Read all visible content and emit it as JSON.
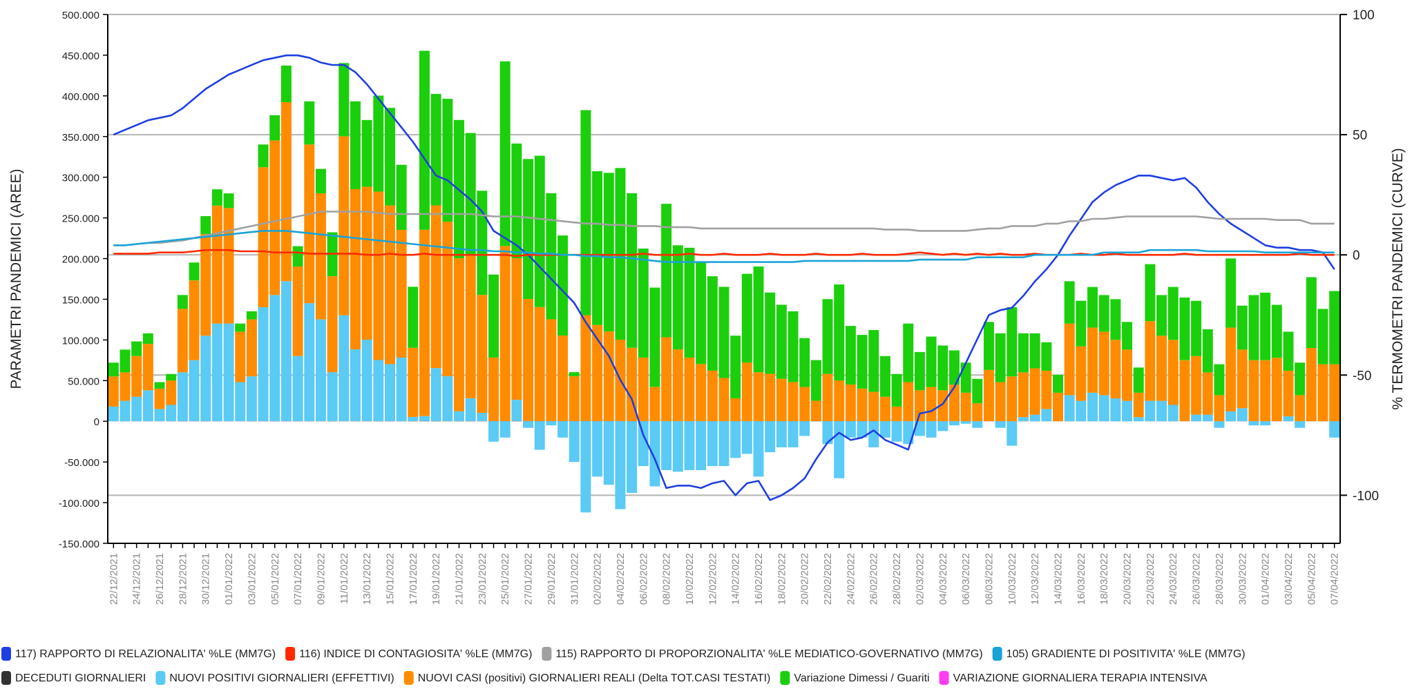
{
  "chart_data": {
    "type": "bar",
    "stacked": true,
    "ylabel": "PARAMETRI PANDEMICI (AREE)",
    "y2label": "% TERMOMETRI PANDEMICI (CURVE)",
    "ylim": [
      -150000,
      500000
    ],
    "yticks": [
      {
        "value": -150000,
        "label": "-150.000"
      },
      {
        "value": -100000,
        "label": "-100.000"
      },
      {
        "value": -50000,
        "label": "-50.000"
      },
      0,
      {
        "value": 50000,
        "label": "50.000"
      },
      {
        "value": 100000,
        "label": "100.000"
      },
      {
        "value": 150000,
        "label": "150.000"
      },
      {
        "value": 200000,
        "label": "200.000"
      },
      {
        "value": 250000,
        "label": "250.000"
      },
      {
        "value": 300000,
        "label": "300.000"
      },
      {
        "value": 350000,
        "label": "350.000"
      },
      {
        "value": 400000,
        "label": "400.000"
      },
      {
        "value": 450000,
        "label": "450.000"
      },
      {
        "value": 500000,
        "label": "500.000"
      }
    ],
    "y2lim": [
      -120,
      100
    ],
    "y2ticks": [
      -100,
      -50,
      0,
      50,
      100
    ],
    "grid": "y2",
    "legend": "bottom",
    "categories": [
      "22/12/2021",
      null,
      "24/12/2021",
      null,
      "26/12/2021",
      null,
      "28/12/2021",
      null,
      "30/12/2021",
      null,
      "01/01/2022",
      null,
      "03/01/2022",
      null,
      "05/01/2022",
      null,
      "07/01/2022",
      null,
      "09/01/2022",
      null,
      "11/01/2022",
      null,
      "13/01/2022",
      null,
      "15/01/2022",
      null,
      "17/01/2022",
      null,
      "19/01/2022",
      null,
      "21/01/2022",
      null,
      "23/01/2022",
      null,
      "25/01/2022",
      null,
      "27/01/2022",
      null,
      "29/01/2022",
      null,
      "31/01/2022",
      null,
      "02/02/2022",
      null,
      "04/02/2022",
      null,
      "06/02/2022",
      null,
      "08/02/2022",
      null,
      "10/02/2022",
      null,
      "12/02/2022",
      null,
      "14/02/2022",
      null,
      "16/02/2022",
      null,
      "18/02/2022",
      null,
      "20/02/2022",
      null,
      "22/02/2022",
      null,
      "24/02/2022",
      null,
      "26/02/2022",
      null,
      "28/02/2022",
      null,
      "02/03/2022",
      null,
      "04/03/2022",
      null,
      "06/03/2022",
      null,
      "08/03/2022",
      null,
      "10/03/2022",
      null,
      "12/03/2022",
      null,
      "14/03/2022",
      null,
      "16/03/2022",
      null,
      "18/03/2022",
      null,
      "20/03/2022",
      null,
      "22/03/2022",
      null,
      "24/03/2022",
      null,
      "26/03/2022",
      null,
      "28/03/2022",
      null,
      "30/03/2022",
      null,
      "01/04/2022",
      null,
      "03/04/2022",
      null,
      "05/04/2022",
      null,
      "07/04/2022"
    ],
    "series": [
      {
        "name": "117) RAPPORTO DI RELAZIONALITA' %LE (MM7G)",
        "type": "line",
        "axis": "y2",
        "color": "#1f3fe0",
        "values": [
          50,
          52,
          54,
          56,
          57,
          58,
          61,
          65,
          69,
          72,
          75,
          77,
          79,
          81,
          82,
          83,
          83,
          82,
          80,
          79,
          79,
          76,
          71,
          65,
          59,
          53,
          47,
          40,
          33,
          31,
          27,
          23,
          18,
          10,
          7,
          4,
          0,
          -5,
          -10,
          -15,
          -20,
          -28,
          -35,
          -42,
          -52,
          -60,
          -75,
          -85,
          -97,
          -96,
          -96,
          -97,
          -95,
          -94,
          -100,
          -95,
          -94,
          -102,
          -100,
          -97,
          -93,
          -85,
          -78,
          -74,
          -77,
          -76,
          -73,
          -77,
          -79,
          -81,
          -66,
          -65,
          -62,
          -55,
          -45,
          -35,
          -25,
          -23,
          -22,
          -17,
          -11,
          -6,
          0,
          8,
          15,
          22,
          26,
          29,
          31,
          33,
          33,
          32,
          31,
          32,
          28,
          22,
          17,
          13,
          10,
          7,
          4,
          3,
          3,
          2,
          2,
          1,
          -6
        ]
      },
      {
        "name": "116) INDICE DI CONTAGIOSITA' %LE (MM7G)",
        "type": "line",
        "axis": "y2",
        "color": "#ff2a00",
        "values": [
          0.5,
          0.5,
          0.5,
          0.5,
          1,
          1,
          1,
          1.5,
          2,
          2,
          2,
          1.5,
          1.5,
          1.5,
          1,
          1,
          1,
          0.5,
          0.5,
          0.5,
          0.5,
          0.5,
          0,
          0,
          0.5,
          0,
          0,
          0.5,
          0,
          0,
          0,
          0,
          0,
          0,
          0,
          -0.5,
          0,
          0,
          0,
          0,
          0,
          0,
          0,
          0,
          0,
          0,
          0.5,
          0,
          0,
          0,
          0.5,
          0,
          0,
          0.5,
          0,
          0,
          0,
          0.5,
          0,
          0,
          0,
          0.5,
          0,
          0,
          0,
          0.5,
          0,
          0,
          0,
          0.5,
          1,
          0.5,
          0,
          0.5,
          0,
          0.5,
          0,
          0.5,
          0,
          0,
          0.5,
          0,
          0,
          0,
          0.5,
          0,
          0,
          0.5,
          0,
          0,
          0,
          0,
          0,
          0.5,
          0,
          0,
          0,
          0,
          0,
          0,
          0,
          0,
          0,
          0.5,
          0,
          0,
          0
        ]
      },
      {
        "name": "115) RAPPORTO DI PROPORZIONALITA' %LE MEDIATICO-GOVERNATIVO (MM7G)",
        "type": "line",
        "axis": "y2",
        "color": "#a0a0a0",
        "values": [
          4,
          4,
          4.5,
          5,
          5,
          5.5,
          6,
          7,
          8,
          9,
          10,
          11,
          12,
          13,
          14,
          15,
          16,
          17,
          18,
          18,
          18,
          18,
          18,
          17.5,
          17,
          17,
          17,
          17,
          17,
          17,
          17,
          17,
          16.5,
          16,
          16,
          16,
          15.5,
          15,
          14.5,
          14,
          13.5,
          13,
          13,
          12.5,
          12.5,
          12,
          12,
          12,
          11.5,
          11.5,
          11.5,
          11,
          11,
          11,
          11,
          11,
          11,
          11,
          11,
          11,
          11,
          11,
          11,
          11,
          11,
          11,
          11,
          10.5,
          10.5,
          10.5,
          10,
          10,
          10,
          10,
          10,
          10.5,
          11,
          11,
          12,
          12,
          12,
          13,
          13,
          14,
          14,
          15,
          15,
          15.5,
          16,
          16,
          16,
          16,
          16,
          16,
          16,
          15.5,
          15,
          15,
          15,
          15,
          15,
          14.5,
          14.5,
          14.5,
          13,
          13,
          13
        ]
      },
      {
        "name": "105) GRADIENTE DI POSITIVITA' %LE (MM7G)",
        "type": "line",
        "axis": "y2",
        "color": "#1aa3d6",
        "values": [
          4,
          4,
          4.5,
          5,
          5.5,
          6,
          6.5,
          7,
          7.5,
          8,
          8.5,
          9,
          9.5,
          10,
          10,
          10,
          9.5,
          9,
          8.5,
          8,
          7.5,
          7,
          6.5,
          6,
          5.5,
          5,
          4.5,
          4,
          3.5,
          3,
          2.5,
          2,
          2,
          1.5,
          1.5,
          1,
          1,
          0.5,
          0.5,
          0,
          0,
          -0.5,
          -0.5,
          -1,
          -1,
          -1.5,
          -2,
          -2.5,
          -3,
          -3,
          -3,
          -3,
          -3,
          -3,
          -3,
          -3,
          -3,
          -3,
          -3,
          -3,
          -2.5,
          -2.5,
          -2.5,
          -2.5,
          -2.5,
          -2.5,
          -2.5,
          -2.5,
          -2.5,
          -2.5,
          -2,
          -2,
          -2,
          -2,
          -2,
          -1,
          -1,
          -1,
          -1,
          -1,
          0,
          0,
          0,
          0,
          0,
          0,
          1,
          1,
          1,
          1,
          2,
          2,
          2,
          2,
          2,
          1.5,
          1.5,
          1.5,
          1.5,
          1.5,
          1,
          1,
          1,
          1,
          1,
          1,
          1
        ]
      },
      {
        "name": "DECEDUTI GIORNALIERI",
        "type": "bar",
        "color": "#333333",
        "values": [
          120,
          140,
          150,
          130,
          140,
          150,
          200,
          160,
          180,
          150,
          140,
          130,
          220,
          230,
          200,
          230,
          210,
          220,
          250,
          300,
          290,
          310,
          320,
          300,
          280,
          290,
          350,
          430,
          390,
          380,
          360,
          380,
          350,
          380,
          400,
          410,
          380,
          390,
          370,
          390,
          390,
          430,
          400,
          380,
          350,
          340,
          330,
          310,
          320,
          320,
          300,
          290,
          270,
          250,
          250,
          270,
          260,
          250,
          240,
          230,
          220,
          230,
          210,
          200,
          190,
          180,
          170,
          160,
          150,
          140,
          150,
          140,
          150,
          130,
          120,
          130,
          140,
          160,
          150,
          140,
          130,
          120,
          110,
          130,
          140,
          120,
          130,
          120,
          110,
          100,
          120,
          140,
          130,
          120,
          110,
          100,
          110,
          120,
          130,
          140,
          130,
          140,
          120,
          110,
          120,
          130,
          140
        ]
      },
      {
        "name": "NUOVI POSITIVI GIORNALIERI (EFFETTIVI)",
        "type": "bar",
        "color": "#5bcaf5",
        "values": [
          18000,
          25000,
          30000,
          38000,
          15000,
          20000,
          60000,
          75000,
          105000,
          120000,
          120000,
          48000,
          55000,
          140000,
          155000,
          172000,
          80000,
          145000,
          125000,
          60000,
          130000,
          88000,
          100000,
          75000,
          70000,
          78000,
          5000,
          6000,
          65000,
          55000,
          12000,
          28000,
          10000,
          -25000,
          -20000,
          26000,
          -8000,
          -35000,
          -5000,
          -20000,
          -50000,
          -112000,
          -68000,
          -78000,
          -108000,
          -88000,
          -55000,
          -80000,
          -60000,
          -62000,
          -60000,
          -60000,
          -55000,
          -55000,
          -45000,
          -40000,
          -68000,
          -38000,
          -32000,
          -32000,
          -18000,
          0,
          -28000,
          -70000,
          -20000,
          -20000,
          -32000,
          -20000,
          -25000,
          -28000,
          -18000,
          -20000,
          -12000,
          -5000,
          -3000,
          -8000,
          0,
          -8000,
          -30000,
          5000,
          8000,
          15000,
          0,
          32000,
          25000,
          35000,
          32000,
          28000,
          25000,
          5000,
          25000,
          25000,
          20000,
          0,
          8000,
          8000,
          -8000,
          12000,
          16000,
          -5000,
          -5000,
          0,
          6000,
          -8000,
          0,
          0,
          -20000
        ]
      },
      {
        "name": "NUOVI CASI (positivi) GIORNALIERI REALI (Delta TOT.CASI TESTATI)",
        "type": "bar",
        "color": "#ff8c00",
        "values": [
          37000,
          35000,
          50000,
          57000,
          25000,
          30000,
          78000,
          98000,
          125000,
          145000,
          142000,
          62000,
          70000,
          172000,
          190000,
          220000,
          110000,
          195000,
          155000,
          118000,
          220000,
          197000,
          188000,
          207000,
          195000,
          157000,
          85000,
          229000,
          200000,
          190000,
          188000,
          177000,
          145000,
          78000,
          215000,
          174000,
          150000,
          140000,
          125000,
          105000,
          55000,
          130000,
          118000,
          110000,
          100000,
          90000,
          78000,
          42000,
          103000,
          88000,
          78000,
          70000,
          62000,
          53000,
          28000,
          72000,
          60000,
          58000,
          52000,
          48000,
          42000,
          25000,
          58000,
          50000,
          45000,
          40000,
          36000,
          30000,
          18000,
          48000,
          38000,
          42000,
          38000,
          45000,
          35000,
          22000,
          63000,
          48000,
          55000,
          55000,
          57000,
          47000,
          35000,
          88000,
          67000,
          80000,
          78000,
          72000,
          63000,
          30000,
          98000,
          80000,
          80000,
          75000,
          72000,
          52000,
          32000,
          103000,
          72000,
          75000,
          75000,
          78000,
          56000,
          32000,
          90000,
          70000,
          70000
        ]
      },
      {
        "name": "Variazione Dimessi / Guariti",
        "type": "bar",
        "color": "#1ccf0c",
        "values": [
          17000,
          28000,
          18000,
          13000,
          8000,
          8000,
          17000,
          22000,
          22000,
          20000,
          18000,
          10000,
          10000,
          28000,
          31000,
          45000,
          25000,
          53000,
          30000,
          54000,
          90000,
          108000,
          82000,
          118000,
          120000,
          80000,
          75000,
          220000,
          137000,
          151000,
          170000,
          149000,
          128000,
          102000,
          227000,
          141000,
          172000,
          186000,
          155000,
          123000,
          5000,
          252000,
          189000,
          195000,
          211000,
          190000,
          134000,
          122000,
          164000,
          128000,
          135000,
          126000,
          116000,
          112000,
          77000,
          109000,
          130000,
          100000,
          91000,
          87000,
          60000,
          50000,
          92000,
          118000,
          72000,
          66000,
          76000,
          50000,
          40000,
          72000,
          47000,
          62000,
          55000,
          42000,
          37000,
          30000,
          59000,
          60000,
          85000,
          48000,
          43000,
          35000,
          22000,
          52000,
          56000,
          50000,
          45000,
          50000,
          34000,
          31000,
          70000,
          50000,
          65000,
          77000,
          68000,
          53000,
          38000,
          85000,
          54000,
          80000,
          83000,
          65000,
          48000,
          40000,
          87000,
          68000,
          90000
        ]
      },
      {
        "name": "VARIAZIONE GIORNALIERA TERAPIA INTENSIVA",
        "type": "bar",
        "color": "#ff3cf0",
        "values": [
          -10,
          5,
          12,
          20,
          15,
          18,
          25,
          30,
          20,
          15,
          10,
          20,
          25,
          30,
          25,
          15,
          10,
          5,
          0,
          -5,
          10,
          5,
          -5,
          -10,
          -15,
          -5,
          -20,
          -25,
          -10,
          -15,
          -20,
          -30,
          -25,
          -15,
          -10,
          -20,
          -25,
          -15,
          -10,
          -5,
          -10,
          -15,
          -20,
          -25,
          -15,
          -10,
          -5,
          -20,
          -15,
          -10,
          -15,
          -20,
          -10,
          -5,
          -10,
          -15,
          -20,
          -10,
          -5,
          0,
          -10,
          -5,
          -15,
          -10,
          -5,
          0,
          -5,
          -10,
          -5,
          0,
          5,
          -5,
          0,
          5,
          -5,
          0,
          5,
          -10,
          -5,
          0,
          5,
          0,
          -5,
          5,
          10,
          5,
          0,
          -5,
          5,
          10,
          5,
          0,
          -5,
          5,
          10,
          0,
          -5,
          5,
          0,
          -10,
          -5,
          0,
          5,
          -5,
          0,
          5,
          -5
        ]
      }
    ]
  }
}
